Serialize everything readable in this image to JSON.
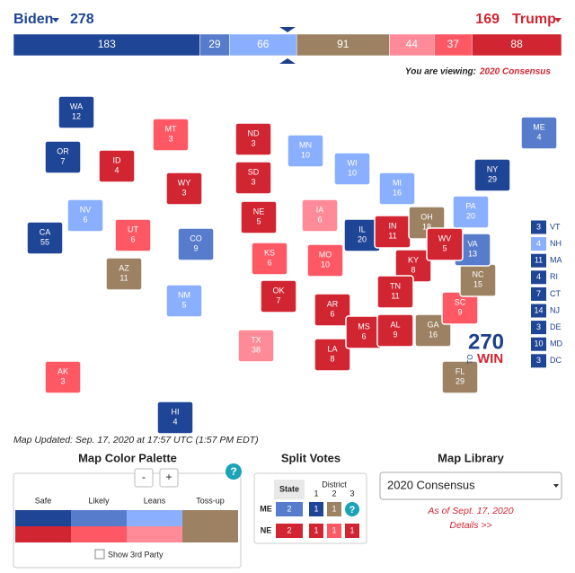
{
  "ratings": {
    "safe-d": "#1f4596",
    "likely-d": "#577ccc",
    "leans-d": "#8aafff",
    "toss": "#9c8262",
    "leans-r": "#ff8b98",
    "likely-r": "#ff5865",
    "safe-r": "#d22532"
  },
  "header": {
    "dem_name": "Biden",
    "dem_total": 278,
    "rep_total": 169,
    "rep_name": "Trump"
  },
  "bar": [
    {
      "value": 183,
      "rating": "safe-d"
    },
    {
      "value": 29,
      "rating": "likely-d"
    },
    {
      "value": 66,
      "rating": "leans-d"
    },
    {
      "value": 91,
      "rating": "toss"
    },
    {
      "value": 44,
      "rating": "leans-r"
    },
    {
      "value": 37,
      "rating": "likely-r"
    },
    {
      "value": 88,
      "rating": "safe-r"
    }
  ],
  "viewing": {
    "prefix": "You are viewing:",
    "map": "2020 Consensus"
  },
  "states": [
    {
      "abbr": "WA",
      "ev": 12,
      "rating": "safe-d"
    },
    {
      "abbr": "OR",
      "ev": 7,
      "rating": "safe-d"
    },
    {
      "abbr": "CA",
      "ev": 55,
      "rating": "safe-d"
    },
    {
      "abbr": "NV",
      "ev": 6,
      "rating": "leans-d"
    },
    {
      "abbr": "ID",
      "ev": 4,
      "rating": "safe-r"
    },
    {
      "abbr": "MT",
      "ev": 3,
      "rating": "likely-r"
    },
    {
      "abbr": "WY",
      "ev": 3,
      "rating": "safe-r"
    },
    {
      "abbr": "UT",
      "ev": 6,
      "rating": "likely-r"
    },
    {
      "abbr": "AZ",
      "ev": 11,
      "rating": "toss"
    },
    {
      "abbr": "CO",
      "ev": 9,
      "rating": "likely-d"
    },
    {
      "abbr": "NM",
      "ev": 5,
      "rating": "leans-d"
    },
    {
      "abbr": "ND",
      "ev": 3,
      "rating": "safe-r"
    },
    {
      "abbr": "SD",
      "ev": 3,
      "rating": "safe-r"
    },
    {
      "abbr": "NE",
      "ev": 5,
      "rating": "safe-r"
    },
    {
      "abbr": "KS",
      "ev": 6,
      "rating": "likely-r"
    },
    {
      "abbr": "OK",
      "ev": 7,
      "rating": "safe-r"
    },
    {
      "abbr": "TX",
      "ev": 38,
      "rating": "leans-r"
    },
    {
      "abbr": "MN",
      "ev": 10,
      "rating": "leans-d"
    },
    {
      "abbr": "IA",
      "ev": 6,
      "rating": "leans-r"
    },
    {
      "abbr": "MO",
      "ev": 10,
      "rating": "likely-r"
    },
    {
      "abbr": "AR",
      "ev": 6,
      "rating": "safe-r"
    },
    {
      "abbr": "LA",
      "ev": 8,
      "rating": "safe-r"
    },
    {
      "abbr": "WI",
      "ev": 10,
      "rating": "leans-d"
    },
    {
      "abbr": "IL",
      "ev": 20,
      "rating": "safe-d"
    },
    {
      "abbr": "MI",
      "ev": 16,
      "rating": "leans-d"
    },
    {
      "abbr": "IN",
      "ev": 11,
      "rating": "safe-r"
    },
    {
      "abbr": "OH",
      "ev": 18,
      "rating": "toss"
    },
    {
      "abbr": "KY",
      "ev": 8,
      "rating": "safe-r"
    },
    {
      "abbr": "TN",
      "ev": 11,
      "rating": "safe-r"
    },
    {
      "abbr": "MS",
      "ev": 6,
      "rating": "safe-r"
    },
    {
      "abbr": "AL",
      "ev": 9,
      "rating": "safe-r"
    },
    {
      "abbr": "GA",
      "ev": 16,
      "rating": "toss"
    },
    {
      "abbr": "FL",
      "ev": 29,
      "rating": "toss"
    },
    {
      "abbr": "SC",
      "ev": 9,
      "rating": "likely-r"
    },
    {
      "abbr": "NC",
      "ev": 15,
      "rating": "toss"
    },
    {
      "abbr": "VA",
      "ev": 13,
      "rating": "likely-d"
    },
    {
      "abbr": "WV",
      "ev": 5,
      "rating": "safe-r"
    },
    {
      "abbr": "PA",
      "ev": 20,
      "rating": "leans-d"
    },
    {
      "abbr": "NY",
      "ev": 29,
      "rating": "safe-d"
    },
    {
      "abbr": "ME",
      "ev": 4,
      "rating": "likely-d"
    },
    {
      "abbr": "AK",
      "ev": 3,
      "rating": "likely-r"
    },
    {
      "abbr": "HI",
      "ev": 4,
      "rating": "safe-d"
    }
  ],
  "small_states": [
    {
      "abbr": "VT",
      "ev": 3,
      "rating": "safe-d"
    },
    {
      "abbr": "NH",
      "ev": 4,
      "rating": "leans-d"
    },
    {
      "abbr": "MA",
      "ev": 11,
      "rating": "safe-d"
    },
    {
      "abbr": "RI",
      "ev": 4,
      "rating": "safe-d"
    },
    {
      "abbr": "CT",
      "ev": 7,
      "rating": "safe-d"
    },
    {
      "abbr": "NJ",
      "ev": 14,
      "rating": "safe-d"
    },
    {
      "abbr": "DE",
      "ev": 3,
      "rating": "safe-d"
    },
    {
      "abbr": "MD",
      "ev": 10,
      "rating": "safe-d"
    },
    {
      "abbr": "DC",
      "ev": 3,
      "rating": "safe-d"
    }
  ],
  "logo": {
    "number": "270",
    "to": "TO",
    "win": "WIN"
  },
  "updated": "Map Updated: Sep. 17, 2020 at 17:57 UTC (1:57 PM EDT)",
  "palette": {
    "title": "Map Color Palette",
    "buttons": [
      "-",
      "+"
    ],
    "help": "?",
    "columns": [
      "Safe",
      "Likely",
      "Leans",
      "Toss-up"
    ],
    "third_party": "Show 3rd Party"
  },
  "split": {
    "title": "Split Votes",
    "state_header": "State",
    "district_header": "District",
    "districts": [
      1,
      2,
      3
    ],
    "help": "?",
    "rows": [
      {
        "state": "ME",
        "total": 2,
        "rating": "likely-d",
        "districts": [
          {
            "value": 1,
            "rating": "safe-d"
          },
          {
            "value": 1,
            "rating": "toss"
          }
        ]
      },
      {
        "state": "NE",
        "total": 2,
        "rating": "safe-r",
        "districts": [
          {
            "value": 1,
            "rating": "safe-r"
          },
          {
            "value": 1,
            "rating": "likely-r"
          },
          {
            "value": 1,
            "rating": "safe-r"
          }
        ]
      }
    ]
  },
  "library": {
    "title": "Map Library",
    "selected": "2020 Consensus",
    "as_of": "As of Sept. 17, 2020",
    "details": "Details >>"
  }
}
